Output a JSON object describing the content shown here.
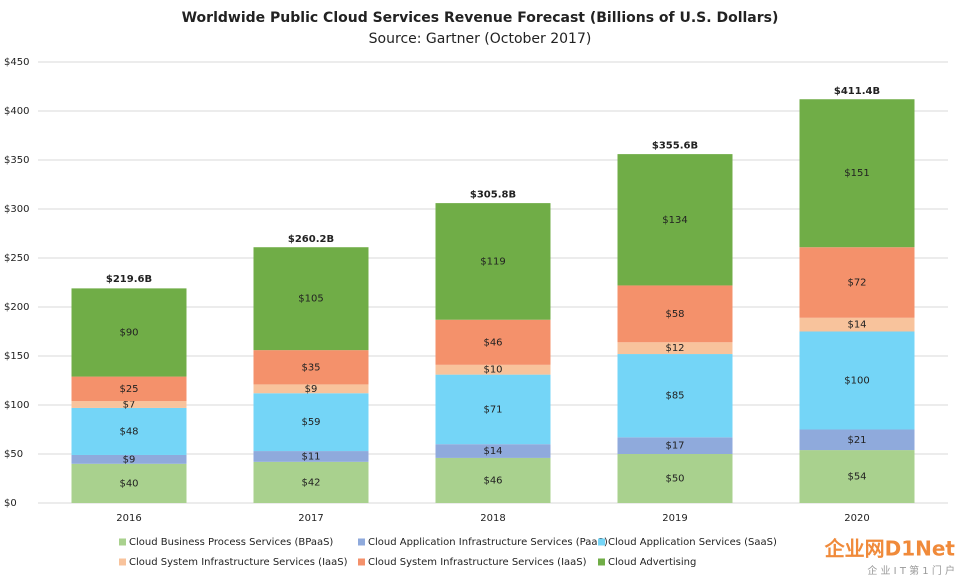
{
  "chart_data": {
    "type": "stacked_bar",
    "title": "Worldwide Public Cloud Services Revenue Forecast (Billions of U.S. Dollars)",
    "subtitle": "Source: Gartner (October 2017)",
    "categories": [
      "2016",
      "2017",
      "2018",
      "2019",
      "2020"
    ],
    "series": [
      {
        "name": "Cloud Business Process Services (BPaaS)",
        "color": "#a9d18e",
        "values": [
          40,
          42,
          46,
          50,
          54
        ],
        "value_labels": [
          "$40",
          "$42",
          "$46",
          "$50",
          "$54"
        ]
      },
      {
        "name": "Cloud Application Infrastructure Services (PaaS)",
        "color": "#8faadc",
        "values": [
          9,
          11,
          14,
          17,
          21
        ],
        "value_labels": [
          "$9",
          "$11",
          "$14",
          "$17",
          "$21"
        ]
      },
      {
        "name": "Cloud Application Services (SaaS)",
        "color": "#74d5f7",
        "values": [
          48,
          59,
          71,
          85,
          100
        ],
        "value_labels": [
          "$48",
          "$59",
          "$71",
          "$85",
          "$100"
        ]
      },
      {
        "name": "Cloud System Infrastructure Services (IaaS)",
        "color": "#f8c39c",
        "values": [
          7,
          9,
          10,
          12,
          14
        ],
        "value_labels": [
          "$7",
          "$9",
          "$10",
          "$12",
          "$14"
        ]
      },
      {
        "name": "Cloud System Infrastructure Services (IaaS)",
        "color": "#f4916b",
        "values": [
          25,
          35,
          46,
          58,
          72
        ],
        "value_labels": [
          "$25",
          "$35",
          "$46",
          "$58",
          "$72"
        ]
      },
      {
        "name": "Cloud Advertising",
        "color": "#70ad47",
        "values": [
          90,
          105,
          119,
          134,
          151
        ],
        "value_labels": [
          "$90",
          "$105",
          "$119",
          "$134",
          "$151"
        ]
      }
    ],
    "totals": {
      "values": [
        219.6,
        260.2,
        305.8,
        355.6,
        411.4
      ],
      "value_labels": [
        "$219.6B",
        "$260.2B",
        "$305.8B",
        "$355.6B",
        "$411.4B"
      ]
    },
    "ylim": [
      0,
      450
    ],
    "yticks": [
      {
        "value": 0,
        "label": "$0"
      },
      {
        "value": 50,
        "label": "$50"
      },
      {
        "value": 100,
        "label": "$100"
      },
      {
        "value": 150,
        "label": "$150"
      },
      {
        "value": 200,
        "label": "$200"
      },
      {
        "value": 250,
        "label": "$250"
      },
      {
        "value": 300,
        "label": "$300"
      },
      {
        "value": 350,
        "label": "$350"
      },
      {
        "value": 400,
        "label": "$400"
      },
      {
        "value": 450,
        "label": "$450"
      }
    ],
    "grid": true,
    "legend": "bottom",
    "watermark": [
      "企业网D1Net",
      "企 业 I T 第 1 门 户"
    ]
  }
}
